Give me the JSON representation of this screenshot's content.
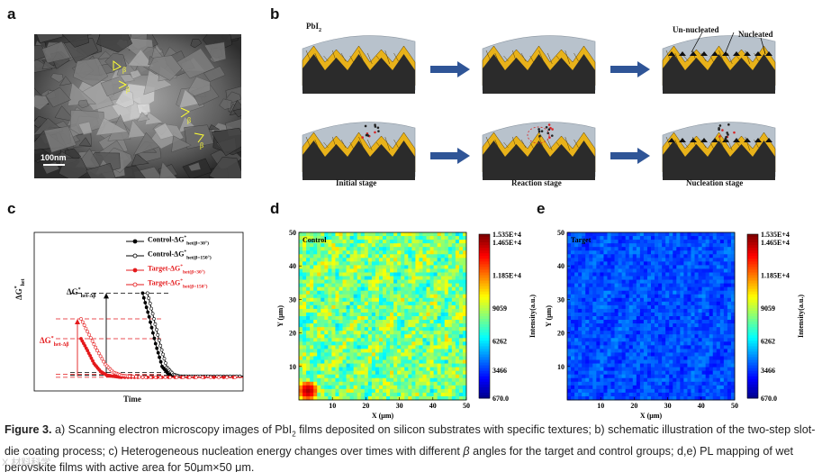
{
  "panels": {
    "a": "a",
    "b": "b",
    "c": "c",
    "d": "d",
    "e": "e"
  },
  "panel_a": {
    "scale_bar": "100nm",
    "angle_marks": [
      "β",
      "β",
      "β",
      "β"
    ]
  },
  "panel_b": {
    "pbi2_label": "PbI",
    "pbi2_sub": "2",
    "un_nucleated": "Un-nucleated",
    "nucleated": "Nucleated",
    "stages": [
      "Initial stage",
      "Reaction stage",
      "Nucleation stage"
    ],
    "colors": {
      "substrate": "#2b2b2b",
      "film": "#e8b21a",
      "solution": "#b8c2cc",
      "arrow": "#2f5597"
    }
  },
  "panel_c": {
    "ylabel_main": "ΔG",
    "ylabel_sup": "*",
    "ylabel_sub": "het",
    "xlabel": "Time",
    "black_delta_main": "ΔG",
    "black_delta_sup": "*",
    "black_delta_sub": "het-Δβ",
    "red_delta_main": "ΔG",
    "red_delta_sup": "*",
    "red_delta_sub": "het-Δβ",
    "legend": [
      {
        "main": "Control-ΔG",
        "sup": "*",
        "sub": "het(β=30°)",
        "color": "#000000",
        "marker": "filled"
      },
      {
        "main": "Control-ΔG",
        "sup": "*",
        "sub": "het(β=150°)",
        "color": "#000000",
        "marker": "open"
      },
      {
        "main": "Target-ΔG",
        "sup": "*",
        "sub": "het(β=30°)",
        "color": "#e41a1c",
        "marker": "filled"
      },
      {
        "main": "Target-ΔG",
        "sup": "*",
        "sub": "het(β=150°)",
        "color": "#e41a1c",
        "marker": "open"
      }
    ]
  },
  "chart_data": [
    {
      "type": "line",
      "panel": "c",
      "xlabel": "Time",
      "ylabel": "ΔG*het",
      "series": [
        {
          "name": "Control-ΔG*het(β=30°)",
          "color": "#000000",
          "x": [
            0.38,
            0.42,
            0.46,
            0.5,
            0.54,
            0.58,
            0.62,
            0.7,
            0.8,
            0.9,
            1.0
          ],
          "y": [
            0.86,
            0.62,
            0.35,
            0.12,
            0.04,
            0.02,
            0.02,
            0.02,
            0.02,
            0.02,
            0.02
          ]
        },
        {
          "name": "Control-ΔG*het(β=150°)",
          "color": "#000000",
          "x": [
            0.41,
            0.45,
            0.49,
            0.53,
            0.57,
            0.61,
            0.65,
            0.72,
            0.8,
            0.9,
            1.0
          ],
          "y": [
            0.86,
            0.6,
            0.33,
            0.11,
            0.04,
            0.02,
            0.02,
            0.02,
            0.02,
            0.02,
            0.02
          ]
        },
        {
          "name": "Target-ΔG*het(β=30°)",
          "color": "#e41a1c",
          "x": [
            0.0,
            0.04,
            0.08,
            0.12,
            0.16,
            0.2,
            0.25,
            0.35,
            0.5,
            0.7,
            1.0
          ],
          "y": [
            0.4,
            0.28,
            0.15,
            0.07,
            0.03,
            0.02,
            0.01,
            0.01,
            0.01,
            0.01,
            0.01
          ]
        },
        {
          "name": "Target-ΔG*het(β=150°)",
          "color": "#e41a1c",
          "x": [
            0.0,
            0.05,
            0.1,
            0.15,
            0.2,
            0.25,
            0.3,
            0.4,
            0.55,
            0.75,
            1.0
          ],
          "y": [
            0.6,
            0.44,
            0.28,
            0.14,
            0.06,
            0.03,
            0.02,
            0.01,
            0.01,
            0.01,
            0.01
          ]
        }
      ]
    },
    {
      "type": "heatmap",
      "panel": "d",
      "title": "Control",
      "xlabel": "X (μm)",
      "ylabel": "Y (μm)",
      "xlim": [
        0,
        50
      ],
      "ylim": [
        0,
        50
      ],
      "x_ticks": [
        "10",
        "20",
        "30",
        "40",
        "50"
      ],
      "y_ticks": [
        "10",
        "20",
        "30",
        "40",
        "50"
      ],
      "colorbar_label": "Intensity(a.u.)",
      "colorbar_ticks": [
        "1.535E+4",
        "1.465E+4",
        "1.185E+4",
        "9059",
        "6262",
        "3466",
        "670.0"
      ],
      "value_range": [
        670.0,
        15350
      ],
      "dominant": "green"
    },
    {
      "type": "heatmap",
      "panel": "e",
      "title": "Target",
      "xlabel": "X (μm)",
      "ylabel": "Y (μm)",
      "xlim": [
        0,
        50
      ],
      "ylim": [
        0,
        50
      ],
      "x_ticks": [
        "10",
        "20",
        "30",
        "40",
        "50"
      ],
      "y_ticks": [
        "10",
        "20",
        "30",
        "40",
        "50"
      ],
      "colorbar_label": "Intensity(a.u.)",
      "colorbar_ticks": [
        "1.535E+4",
        "1.465E+4",
        "1.185E+4",
        "9059",
        "6262",
        "3466",
        "670.0"
      ],
      "value_range": [
        670.0,
        15350
      ],
      "dominant": "blue"
    }
  ],
  "caption": {
    "label": "Figure 3.",
    "t1": "a) Scanning electron microscopy images of PbI",
    "t1_sub": "2",
    "t2": " films deposited on silicon substrates with specific textures; b) schematic illustration of the two-step slot-die coating process; c) Heterogeneous nucleation energy changes over times with different ",
    "beta": "β",
    "t3": " angles for the target and control groups; d,e) PL mapping of wet perovskite films with active area for 50μm×50 μm."
  },
  "watermark": "X 材料科学"
}
